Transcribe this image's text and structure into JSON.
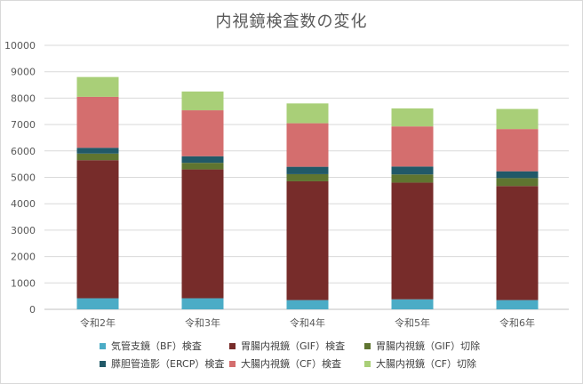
{
  "chart_data": {
    "type": "bar",
    "stacked": true,
    "title": "内視鏡検査数の変化",
    "xlabel": "",
    "ylabel": "",
    "ylim": [
      0,
      10000
    ],
    "yticks": [
      0,
      1000,
      2000,
      3000,
      4000,
      5000,
      6000,
      7000,
      8000,
      9000,
      10000
    ],
    "grid": true,
    "legend_position": "bottom",
    "categories": [
      "令和2年",
      "令和3年",
      "令和4年",
      "令和5年",
      "令和6年"
    ],
    "series": [
      {
        "name": "気管支鏡（BF）検査",
        "color": "#4bacc6",
        "values": [
          420,
          420,
          350,
          380,
          350
        ]
      },
      {
        "name": "胃腸内視鏡（GIF）検査",
        "color": "#772c2a",
        "values": [
          5230,
          4880,
          4500,
          4420,
          4320
        ]
      },
      {
        "name": "胃腸内視鏡（GIF）切除",
        "color": "#5f7530",
        "values": [
          250,
          250,
          270,
          310,
          300
        ]
      },
      {
        "name": "膵胆管造影（ERCP）検査",
        "color": "#215968",
        "values": [
          220,
          250,
          280,
          300,
          260
        ]
      },
      {
        "name": "大腸内視鏡（CF）検査",
        "color": "#d46e6e",
        "values": [
          1930,
          1740,
          1650,
          1520,
          1600
        ]
      },
      {
        "name": "大腸内視鏡（CF）切除",
        "color": "#a9cf78",
        "values": [
          750,
          710,
          750,
          680,
          760
        ]
      }
    ]
  }
}
